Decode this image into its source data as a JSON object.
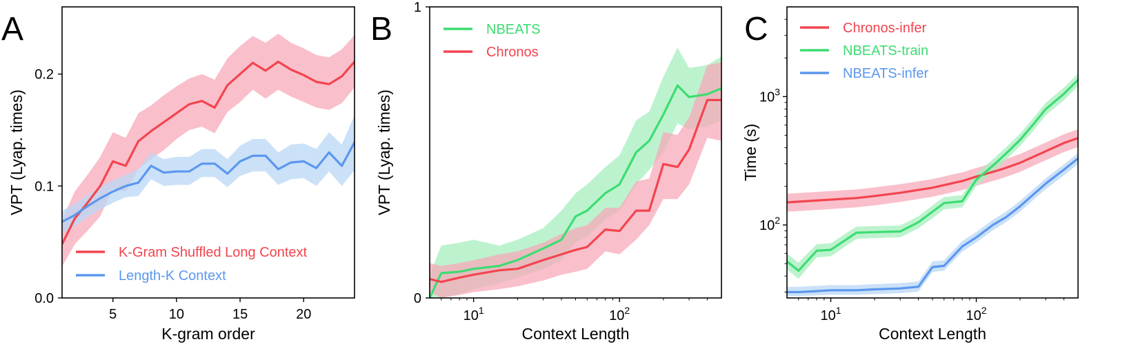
{
  "colors": {
    "red": "#f2444e",
    "red_band": "#f7a9b9",
    "green": "#3ddc72",
    "green_band": "#a6efbd",
    "blue": "#5b97ee",
    "blue_band": "#b9d7f6",
    "axis": "#000000"
  },
  "chart_data": [
    {
      "panel_label": "A",
      "type": "line",
      "xlabel": "K-gram order",
      "ylabel": "VPT (Lyap. times)",
      "xscale": "linear",
      "yscale": "linear",
      "xlim": [
        1,
        24
      ],
      "ylim": [
        0,
        0.26
      ],
      "xticks": [
        5,
        10,
        15,
        20
      ],
      "xtick_labels": [
        "5",
        "10",
        "15",
        "20"
      ],
      "yticks": [
        0,
        0.1,
        0.2
      ],
      "ytick_labels": [
        "0.0",
        "0.1",
        "0.2"
      ],
      "legend_position": "bottom-left",
      "series": [
        {
          "name": "K-Gram Shuffled Long Context",
          "color": "red",
          "x": [
            1,
            2,
            3,
            4,
            5,
            6,
            7,
            8,
            9,
            10,
            11,
            12,
            13,
            14,
            15,
            16,
            17,
            18,
            19,
            20,
            21,
            22,
            23,
            24
          ],
          "y": [
            0.048,
            0.071,
            0.085,
            0.1,
            0.122,
            0.118,
            0.14,
            0.149,
            0.157,
            0.165,
            0.173,
            0.176,
            0.17,
            0.19,
            0.2,
            0.21,
            0.203,
            0.211,
            0.204,
            0.199,
            0.193,
            0.191,
            0.198,
            0.211
          ],
          "lower": [
            0.028,
            0.048,
            0.06,
            0.073,
            0.098,
            0.095,
            0.115,
            0.124,
            0.132,
            0.142,
            0.15,
            0.153,
            0.147,
            0.166,
            0.175,
            0.186,
            0.178,
            0.186,
            0.18,
            0.175,
            0.17,
            0.168,
            0.174,
            0.188
          ],
          "upper": [
            0.07,
            0.095,
            0.11,
            0.126,
            0.148,
            0.143,
            0.165,
            0.172,
            0.181,
            0.189,
            0.196,
            0.2,
            0.195,
            0.214,
            0.225,
            0.234,
            0.228,
            0.236,
            0.228,
            0.223,
            0.217,
            0.215,
            0.222,
            0.235
          ]
        },
        {
          "name": "Length-K Context",
          "color": "blue",
          "x": [
            1,
            2,
            3,
            4,
            5,
            6,
            7,
            8,
            9,
            10,
            11,
            12,
            13,
            14,
            15,
            16,
            17,
            18,
            19,
            20,
            21,
            22,
            23,
            24
          ],
          "y": [
            0.068,
            0.074,
            0.082,
            0.089,
            0.095,
            0.1,
            0.103,
            0.118,
            0.112,
            0.113,
            0.113,
            0.12,
            0.12,
            0.111,
            0.122,
            0.127,
            0.127,
            0.115,
            0.121,
            0.122,
            0.116,
            0.13,
            0.118,
            0.139
          ],
          "lower": [
            0.058,
            0.064,
            0.072,
            0.079,
            0.085,
            0.09,
            0.091,
            0.106,
            0.1,
            0.101,
            0.101,
            0.108,
            0.108,
            0.099,
            0.109,
            0.113,
            0.113,
            0.101,
            0.106,
            0.107,
            0.1,
            0.113,
            0.1,
            0.114
          ],
          "upper": [
            0.078,
            0.084,
            0.092,
            0.099,
            0.105,
            0.11,
            0.115,
            0.13,
            0.124,
            0.126,
            0.126,
            0.133,
            0.133,
            0.124,
            0.136,
            0.142,
            0.142,
            0.13,
            0.137,
            0.138,
            0.133,
            0.148,
            0.137,
            0.163
          ]
        }
      ]
    },
    {
      "panel_label": "B",
      "type": "line",
      "xlabel": "Context Length",
      "ylabel": "VPT (Lyap. times)",
      "xscale": "log",
      "yscale": "linear",
      "xlim": [
        5,
        500
      ],
      "ylim": [
        0,
        1
      ],
      "xticks": [
        10,
        100
      ],
      "xtick_base": [
        "10",
        "10"
      ],
      "xtick_exp": [
        "1",
        "2"
      ],
      "yticks": [
        0,
        1
      ],
      "ytick_labels": [
        "0",
        "1"
      ],
      "legend_position": "top-left",
      "series": [
        {
          "name": "NBEATS",
          "color": "green",
          "x": [
            5,
            6,
            8,
            10,
            15,
            20,
            30,
            40,
            50,
            60,
            80,
            100,
            130,
            160,
            200,
            250,
            300,
            400,
            500
          ],
          "y": [
            0.0,
            0.085,
            0.09,
            0.1,
            0.11,
            0.13,
            0.17,
            0.2,
            0.28,
            0.3,
            0.36,
            0.39,
            0.5,
            0.54,
            0.63,
            0.73,
            0.69,
            0.7,
            0.72
          ],
          "lower": [
            0.0,
            0.0,
            0.015,
            0.03,
            0.05,
            0.07,
            0.1,
            0.13,
            0.19,
            0.21,
            0.27,
            0.3,
            0.39,
            0.44,
            0.5,
            0.6,
            0.58,
            0.59,
            0.61
          ],
          "upper": [
            0.08,
            0.18,
            0.19,
            0.2,
            0.18,
            0.2,
            0.24,
            0.3,
            0.36,
            0.39,
            0.45,
            0.49,
            0.61,
            0.64,
            0.76,
            0.86,
            0.79,
            0.8,
            0.83
          ]
        },
        {
          "name": "Chronos",
          "color": "red",
          "x": [
            5,
            6,
            8,
            10,
            15,
            20,
            30,
            40,
            50,
            60,
            80,
            100,
            130,
            160,
            200,
            250,
            300,
            400,
            500
          ],
          "y": [
            0.065,
            0.055,
            0.07,
            0.08,
            0.095,
            0.1,
            0.13,
            0.15,
            0.165,
            0.175,
            0.235,
            0.23,
            0.3,
            0.3,
            0.46,
            0.45,
            0.51,
            0.68,
            0.68
          ],
          "lower": [
            0.02,
            0.0,
            0.01,
            0.02,
            0.03,
            0.04,
            0.06,
            0.08,
            0.09,
            0.1,
            0.16,
            0.15,
            0.2,
            0.25,
            0.34,
            0.34,
            0.39,
            0.55,
            0.54
          ],
          "upper": [
            0.12,
            0.11,
            0.12,
            0.13,
            0.15,
            0.16,
            0.19,
            0.22,
            0.24,
            0.25,
            0.31,
            0.31,
            0.4,
            0.41,
            0.57,
            0.56,
            0.62,
            0.8,
            0.81
          ]
        }
      ]
    },
    {
      "panel_label": "C",
      "type": "line",
      "xlabel": "Context Length",
      "ylabel": "Time (s)",
      "xscale": "log",
      "yscale": "log",
      "xlim": [
        5,
        500
      ],
      "ylim": [
        27,
        5000
      ],
      "xticks": [
        10,
        100
      ],
      "xtick_base": [
        "10",
        "10"
      ],
      "xtick_exp": [
        "1",
        "2"
      ],
      "yticks": [
        100,
        1000
      ],
      "ytick_base": [
        "10",
        "10"
      ],
      "ytick_exp": [
        "2",
        "3"
      ],
      "legend_position": "top-left",
      "series": [
        {
          "name": "Chronos-infer",
          "color": "red",
          "x": [
            5,
            8,
            15,
            20,
            30,
            50,
            80,
            100,
            150,
            200,
            300,
            400,
            500
          ],
          "y": [
            150,
            155,
            162,
            168,
            178,
            195,
            220,
            238,
            272,
            305,
            375,
            435,
            475
          ],
          "lower": [
            127,
            131,
            137,
            142,
            151,
            166,
            187,
            202,
            231,
            259,
            319,
            370,
            404
          ],
          "upper": [
            175,
            181,
            189,
            196,
            208,
            228,
            257,
            278,
            318,
            357,
            439,
            509,
            556
          ]
        },
        {
          "name": "NBEATS-train",
          "color": "green",
          "x": [
            5,
            6,
            8,
            10,
            15,
            20,
            30,
            40,
            50,
            60,
            80,
            100,
            130,
            160,
            200,
            250,
            300,
            400,
            500
          ],
          "y": [
            52,
            44,
            63,
            64,
            87,
            88,
            89,
            105,
            127,
            148,
            153,
            225,
            290,
            360,
            460,
            620,
            800,
            1050,
            1350
          ],
          "lower": [
            45,
            38,
            56,
            57,
            78,
            79,
            80,
            94,
            113,
            132,
            137,
            201,
            259,
            322,
            411,
            554,
            715,
            938,
            1206
          ],
          "upper": [
            60,
            51,
            71,
            72,
            97,
            98,
            99,
            117,
            142,
            165,
            171,
            252,
            325,
            403,
            515,
            694,
            896,
            1176,
            1512
          ]
        },
        {
          "name": "NBEATS-infer",
          "color": "blue",
          "x": [
            5,
            6,
            8,
            10,
            15,
            20,
            30,
            40,
            50,
            60,
            80,
            100,
            130,
            160,
            200,
            250,
            300,
            400,
            500
          ],
          "y": [
            30,
            30,
            30.5,
            31,
            31,
            31.5,
            32,
            33,
            47,
            48,
            68,
            80,
            100,
            115,
            140,
            175,
            210,
            270,
            330
          ],
          "lower": [
            28,
            28,
            28.3,
            28.6,
            28.6,
            28.9,
            29.4,
            30.3,
            43,
            44,
            62,
            73,
            91,
            105,
            127,
            159,
            190,
            244,
            298
          ],
          "upper": [
            33,
            33,
            33.5,
            34,
            34,
            34.6,
            35.2,
            36.3,
            52,
            53,
            75,
            88,
            110,
            127,
            154,
            193,
            231,
            297,
            363
          ]
        }
      ]
    }
  ]
}
